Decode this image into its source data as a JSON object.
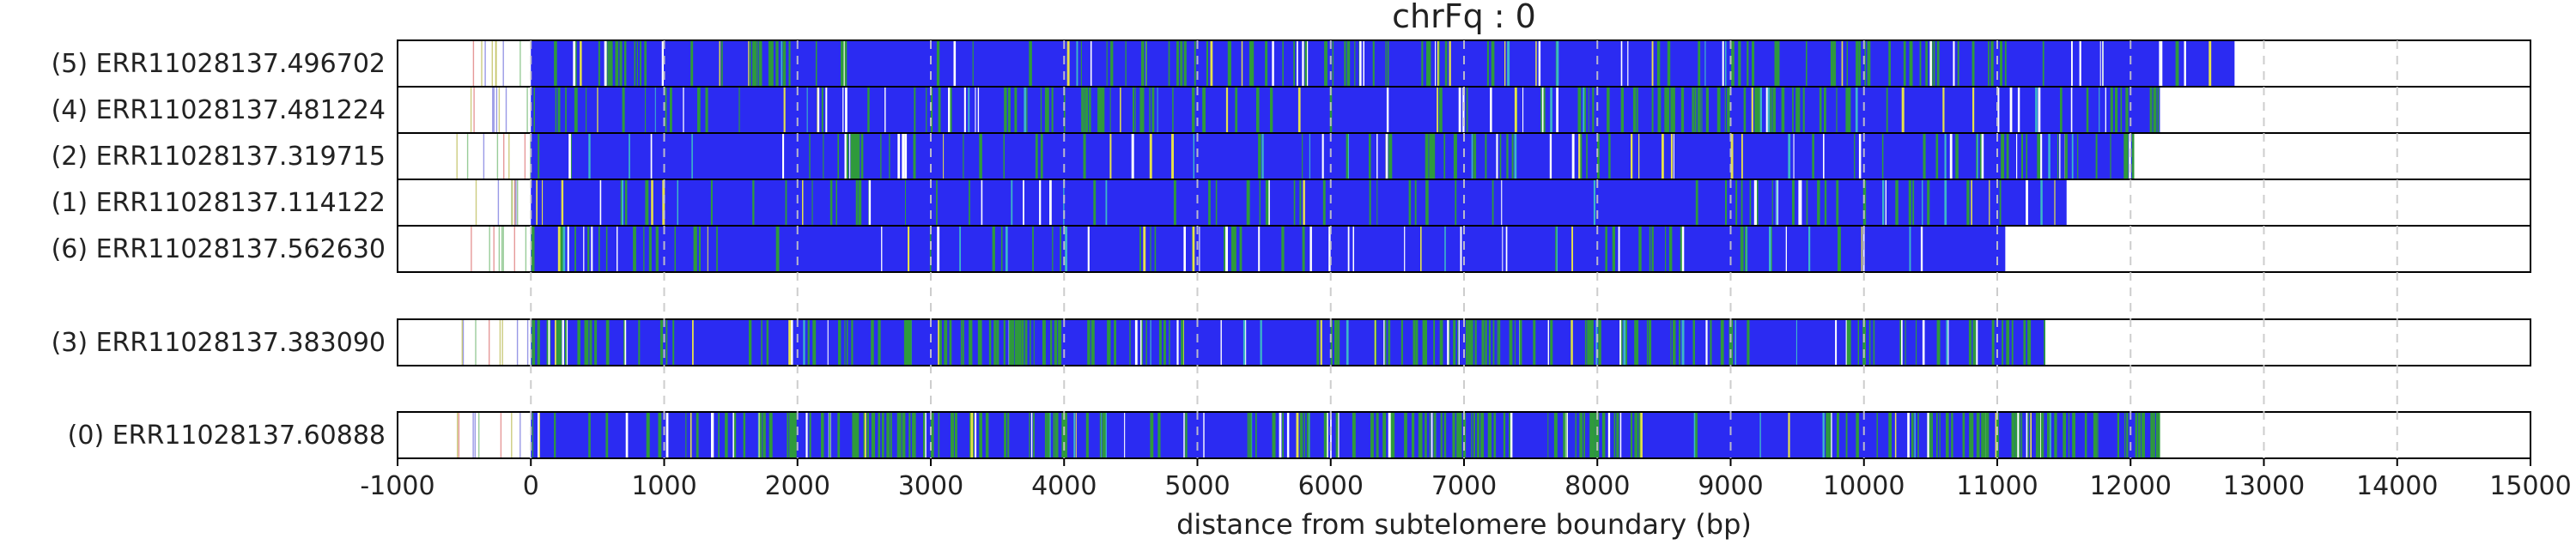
{
  "chart_data": {
    "type": "bar",
    "title": "chrFq : 0",
    "xlabel": "distance from subtelomere boundary (bp)",
    "xlim": [
      -1000,
      15000
    ],
    "xticks": [
      -1000,
      0,
      1000,
      2000,
      3000,
      4000,
      5000,
      6000,
      7000,
      8000,
      9000,
      10000,
      11000,
      12000,
      13000,
      14000,
      15000
    ],
    "tick_labels": [
      "-1000",
      "0",
      "1000",
      "2000",
      "3000",
      "4000",
      "5000",
      "6000",
      "7000",
      "8000",
      "9000",
      "10000",
      "11000",
      "12000",
      "13000",
      "14000",
      "15000"
    ],
    "grid": "vertical dashed at 1000 bp intervals",
    "colors": {
      "repeat_main": "#2b2bf2",
      "repeat_variant_green": "#2f9a3c",
      "repeat_variant_yellow": "#e6e14a",
      "repeat_variant_cyan": "#3bb7c9",
      "gap": "#ffffff",
      "prefix_marks": [
        "#e08080",
        "#7fbf7f",
        "#bfbf5f",
        "#8080e0"
      ],
      "frame": "#000000",
      "grid": "#c8c8c8"
    },
    "groups": [
      {
        "reads": [
          {
            "label": "(5) ERR11028137.496702",
            "start": -560,
            "end": 12780,
            "green_density": 0.32
          },
          {
            "label": "(4) ERR11028137.481224",
            "start": -560,
            "end": 12220,
            "green_density": 0.3
          },
          {
            "label": "(2) ERR11028137.319715",
            "start": -560,
            "end": 12020,
            "green_density": 0.22
          },
          {
            "label": "(1) ERR11028137.114122",
            "start": -560,
            "end": 11520,
            "green_density": 0.22
          },
          {
            "label": "(6) ERR11028137.562630",
            "start": -560,
            "end": 11060,
            "green_density": 0.14
          }
        ]
      },
      {
        "reads": [
          {
            "label": "(3) ERR11028137.383090",
            "start": -560,
            "end": 11360,
            "green_density": 0.55
          }
        ]
      },
      {
        "reads": [
          {
            "label": "(0) ERR11028137.60888",
            "start": -560,
            "end": 12220,
            "green_density": 0.62
          }
        ]
      }
    ]
  }
}
